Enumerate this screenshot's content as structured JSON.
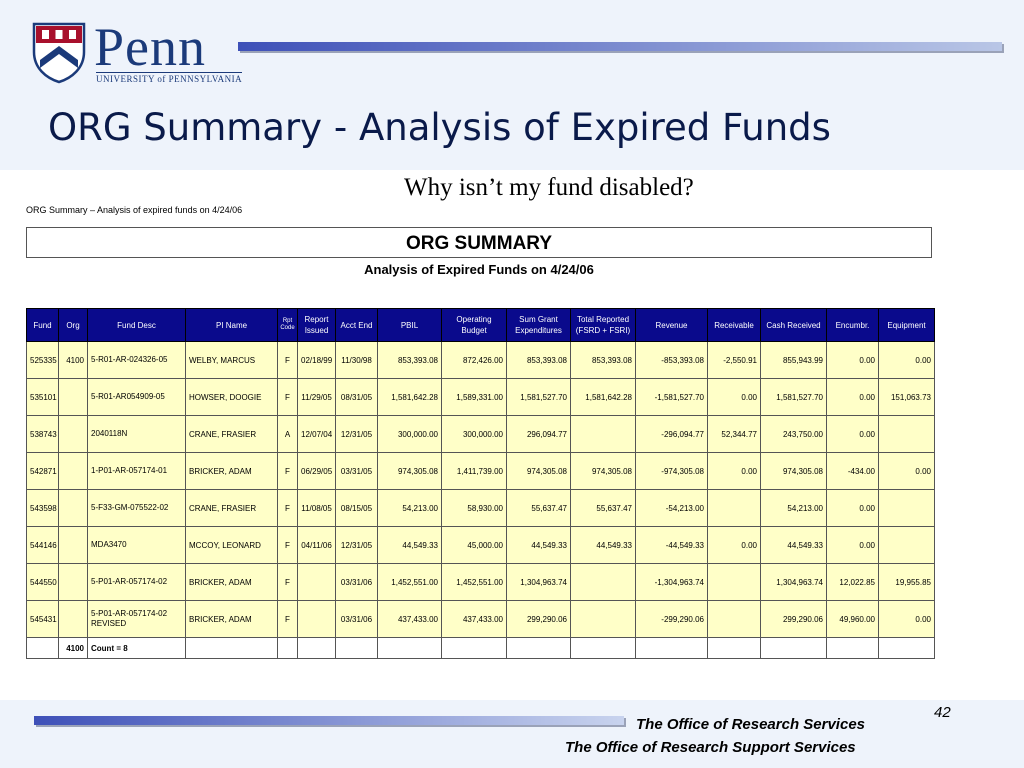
{
  "logo": {
    "wordmark": "Penn",
    "subtitle": "UNIVERSITY of PENNSYLVANIA"
  },
  "slide": {
    "title": "ORG Summary - Analysis of Expired Funds",
    "subtitle": "Why isn’t my fund disabled?"
  },
  "report": {
    "caption": "ORG Summary – Analysis of expired funds on 4/24/06",
    "heading": "ORG SUMMARY",
    "subheading": "Analysis of Expired Funds on 4/24/06",
    "columns": [
      "Fund",
      "Org",
      "Fund Desc",
      "PI Name",
      "Rpt Code",
      "Report Issued",
      "Acct End",
      "PBIL",
      "Operating Budget",
      "Sum Grant Expenditures",
      "Total Reported (FSRD + FSRI)",
      "Revenue",
      "Receivable",
      "Cash Received",
      "Encumbr.",
      "Equipment"
    ],
    "rows": [
      [
        "525335",
        "4100",
        "5-R01-AR-024326-05",
        "WELBY, MARCUS",
        "F",
        "02/18/99",
        "11/30/98",
        "853,393.08",
        "872,426.00",
        "853,393.08",
        "853,393.08",
        "-853,393.08",
        "-2,550.91",
        "855,943.99",
        "0.00",
        "0.00"
      ],
      [
        "535101",
        "",
        "5-R01-AR054909-05",
        "HOWSER, DOOGIE",
        "F",
        "11/29/05",
        "08/31/05",
        "1,581,642.28",
        "1,589,331.00",
        "1,581,527.70",
        "1,581,642.28",
        "-1,581,527.70",
        "0.00",
        "1,581,527.70",
        "0.00",
        "151,063.73"
      ],
      [
        "538743",
        "",
        "2040118N",
        "CRANE, FRASIER",
        "A",
        "12/07/04",
        "12/31/05",
        "300,000.00",
        "300,000.00",
        "296,094.77",
        "",
        "-296,094.77",
        "52,344.77",
        "243,750.00",
        "0.00",
        ""
      ],
      [
        "542871",
        "",
        "1-P01-AR-057174-01",
        "BRICKER, ADAM",
        "F",
        "06/29/05",
        "03/31/05",
        "974,305.08",
        "1,411,739.00",
        "974,305.08",
        "974,305.08",
        "-974,305.08",
        "0.00",
        "974,305.08",
        "-434.00",
        "0.00"
      ],
      [
        "543598",
        "",
        "5-F33-GM-075522-02",
        "CRANE, FRASIER",
        "F",
        "11/08/05",
        "08/15/05",
        "54,213.00",
        "58,930.00",
        "55,637.47",
        "55,637.47",
        "-54,213.00",
        "",
        "54,213.00",
        "0.00",
        ""
      ],
      [
        "544146",
        "",
        "MDA3470",
        "MCCOY, LEONARD",
        "F",
        "04/11/06",
        "12/31/05",
        "44,549.33",
        "45,000.00",
        "44,549.33",
        "44,549.33",
        "-44,549.33",
        "0.00",
        "44,549.33",
        "0.00",
        ""
      ],
      [
        "544550",
        "",
        "5-P01-AR-057174-02",
        "BRICKER, ADAM",
        "F",
        "",
        "03/31/06",
        "1,452,551.00",
        "1,452,551.00",
        "1,304,963.74",
        "",
        "-1,304,963.74",
        "",
        "1,304,963.74",
        "12,022.85",
        "19,955.85"
      ],
      [
        "545431",
        "",
        "5-P01-AR-057174-02 REVISED",
        "BRICKER, ADAM",
        "F",
        "",
        "03/31/06",
        "437,433.00",
        "437,433.00",
        "299,290.06",
        "",
        "-299,290.06",
        "",
        "299,290.06",
        "49,960.00",
        "0.00"
      ]
    ],
    "total": {
      "org": "4100",
      "count": "Count = 8"
    }
  },
  "footer": {
    "line1": "The Office of Research Services",
    "line2": "The Office of Research Support Services",
    "page": "42"
  }
}
